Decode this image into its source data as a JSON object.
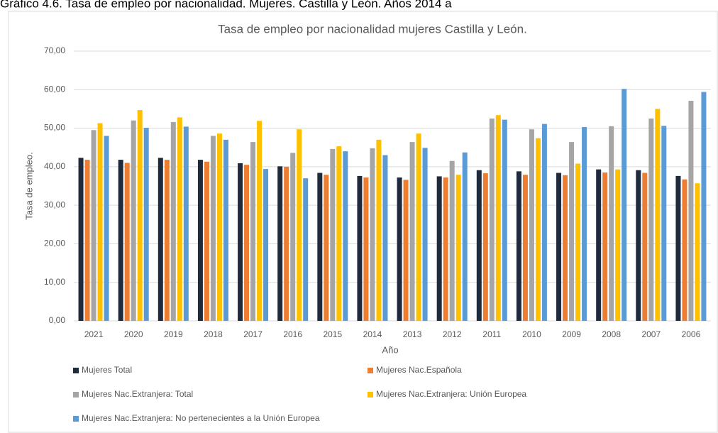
{
  "chart_data": {
    "type": "bar",
    "caption": "Gráfico 4.6. Tasa de empleo por nacionalidad. Mujeres. Castilla y León. Años 2014 a",
    "title": "Tasa de empleo por nacionalidad mujeres Castilla y León.",
    "x_label": "Año",
    "y_label": "Tasa de empleo.",
    "categories": [
      "2021",
      "2020",
      "2019",
      "2018",
      "2017",
      "2016",
      "2015",
      "2014",
      "2013",
      "2012",
      "2011",
      "2010",
      "2009",
      "2008",
      "2007",
      "2006"
    ],
    "series": [
      {
        "name": "Mujeres Total",
        "color": "#1f2a3c",
        "values": [
          42.3,
          41.8,
          42.3,
          41.8,
          40.9,
          40.1,
          38.4,
          37.6,
          37.2,
          37.5,
          39.1,
          38.8,
          38.4,
          39.3,
          39.1,
          37.6
        ]
      },
      {
        "name": "Mujeres Nac.Española",
        "color": "#ed7d31",
        "values": [
          41.8,
          41.0,
          41.8,
          41.3,
          40.5,
          40.0,
          37.9,
          37.2,
          36.6,
          37.2,
          38.3,
          37.9,
          37.8,
          38.5,
          38.4,
          36.7
        ]
      },
      {
        "name": "Mujeres Nac.Extranjera: Total",
        "color": "#a5a5a5",
        "values": [
          49.5,
          52.0,
          51.6,
          48.0,
          46.4,
          43.6,
          44.6,
          44.8,
          46.4,
          41.5,
          52.5,
          49.7,
          46.4,
          50.5,
          52.5,
          57.1
        ]
      },
      {
        "name": "Mujeres Nac.Extranjera: Unión Europea",
        "color": "#ffc000",
        "values": [
          51.3,
          54.7,
          52.8,
          48.6,
          51.9,
          49.7,
          45.3,
          47.0,
          48.6,
          37.9,
          53.4,
          47.4,
          40.8,
          39.3,
          55.0,
          35.7
        ]
      },
      {
        "name": "Mujeres Nac.Extranjera: No pertenecientes a la Unión Europea",
        "color": "#5b9bd5",
        "values": [
          48.0,
          50.1,
          50.4,
          47.0,
          39.4,
          37.0,
          44.0,
          43.0,
          44.9,
          43.7,
          52.2,
          51.1,
          50.3,
          60.2,
          50.6,
          59.4
        ]
      }
    ],
    "ylim": [
      0,
      70
    ],
    "yticks": [
      {
        "value": 0,
        "label": "0,00"
      },
      {
        "value": 10,
        "label": "10,00"
      },
      {
        "value": 20,
        "label": "20,00"
      },
      {
        "value": 30,
        "label": "30,00"
      },
      {
        "value": 40,
        "label": "40,00"
      },
      {
        "value": 50,
        "label": "50,00"
      },
      {
        "value": 60,
        "label": "60,00"
      },
      {
        "value": 70,
        "label": "70,00"
      }
    ],
    "grid": true,
    "legend": "bottom"
  }
}
